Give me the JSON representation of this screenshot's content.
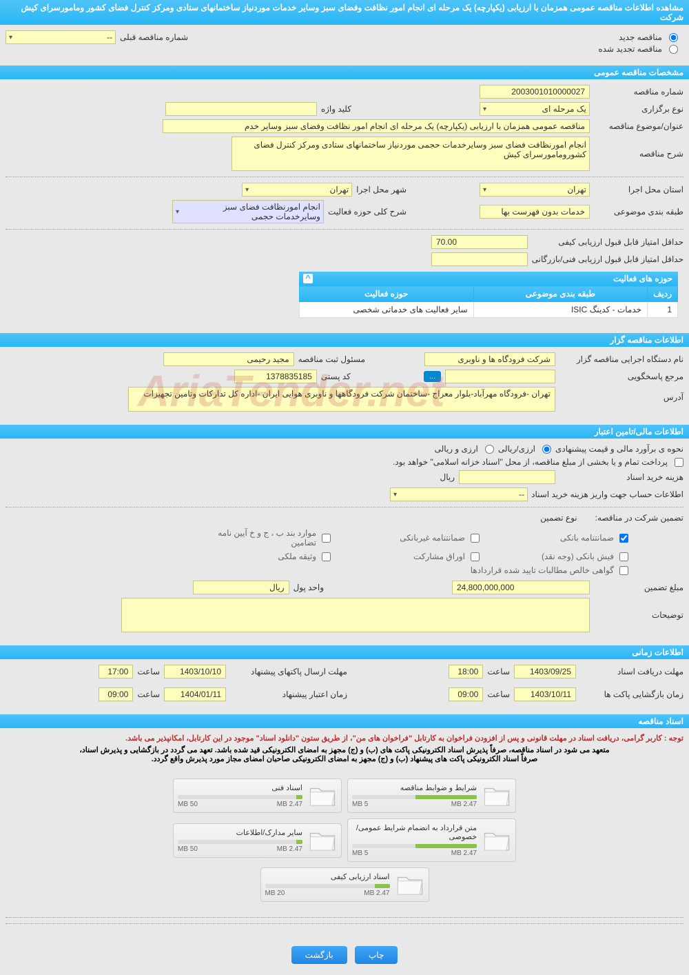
{
  "header": {
    "title": "مشاهده اطلاعات مناقصه عمومی همزمان با ارزیابی (یکپارچه) یک مرحله ای انجام امور نظافت وفضای سبز وسایر خدمات موردنیاز ساختمانهای ستادی ومرکز کنترل فضای کشور ومامورسرای کیش شرکت"
  },
  "radios": {
    "new_tender": "مناقصه جدید",
    "renewed_tender": "مناقصه تجدید شده",
    "prev_tender_label": "شماره مناقصه قبلی",
    "prev_tender_value": "--"
  },
  "general": {
    "section_title": "مشخصات مناقصه عمومی",
    "tender_no_label": "شماره مناقصه",
    "tender_no": "2003001010000027",
    "type_label": "نوع برگزاری",
    "type_value": "یک مرحله ای",
    "keyword_label": "کلید واژه",
    "keyword_value": "",
    "subject_label": "عنوان/موضوع مناقصه",
    "subject_value": "مناقصه عمومی همزمان با ارزیابی (یکپارچه) یک مرحله ای  انجام امور نظافت وفضای سبز وسایر خدم",
    "desc_label": "شرح مناقصه",
    "desc_value": "انجام امورنظافت فضای سبز وسایرخدمات حجمی موردنیاز ساختمانهای ستادی ومرکز کنترل فضای کشورومامورسرای کیش",
    "province_label": "استان محل اجرا",
    "province_value": "تهران",
    "city_label": "شهر محل اجرا",
    "city_value": "تهران",
    "category_label": "طبقه بندی موضوعی",
    "category_value": "خدمات بدون فهرست بها",
    "activity_desc_label": "شرح کلی حوزه فعالیت",
    "activity_desc_value": "انجام امورنظافت فضای سبز وسایرخدمات حجمی",
    "min_quality_label": "حداقل امتیاز قابل قبول ارزیابی کیفی",
    "min_quality_value": "70.00",
    "min_tech_label": "حداقل امتیاز قابل قبول ارزیابی فنی/بازرگانی",
    "min_tech_value": ""
  },
  "activity_table": {
    "title": "حوزه های فعالیت",
    "col_row": "ردیف",
    "col_category": "طبقه بندی موضوعی",
    "col_activity": "حوزه فعالیت",
    "rows": [
      {
        "n": "1",
        "cat": "خدمات - کدینگ ISIC",
        "act": "سایر فعالیت های خدماتی شخصی"
      }
    ]
  },
  "organizer": {
    "section_title": "اطلاعات مناقصه گزار",
    "org_label": "نام دستگاه اجرایی مناقصه گزار",
    "org_value": "شرکت فرودگاه ها و ناوبری",
    "registrar_label": "مسئول ثبت مناقصه",
    "registrar_value": "مجید رحیمی",
    "authority_label": "مرجع پاسخگویی",
    "browse": "...",
    "postcode_label": "کد پستی",
    "postcode_value": "1378835185",
    "address_label": "آدرس",
    "address_value": "تهران -فرودگاه مهرآباد-بلوار معراج -ساختمان شرکت فرودگاهها و ناوبری هوایی ایران -اداره کل تدارکات وتامین تجهیزات"
  },
  "financial": {
    "section_title": "اطلاعات مالی/تامین اعتبار",
    "estimate_label": "نحوه ی برآورد مالی و قیمت پیشنهادی",
    "currency_opt1": "ارزی/ریالی",
    "currency_opt2": "ارزی و ریالی",
    "payment_note": "پرداخت تمام و یا بخشی از مبلغ مناقصه، از محل \"اسناد خزانه اسلامی\" خواهد بود.",
    "doc_cost_label": "هزینه خرید اسناد",
    "doc_cost_unit": "ریال",
    "account_label": "اطلاعات حساب جهت واریز هزینه خرید اسناد",
    "account_value": "--",
    "guarantee_label": "تضمین شرکت در مناقصه:",
    "guarantee_type_label": "نوع تضمین",
    "cb_bank": "ضمانتنامه بانکی",
    "cb_nonbank": "ضمانتنامه غیربانکی",
    "cb_bond": "موارد بند ب ، ج و خ آیین نامه تضامین",
    "cb_cash": "فیش بانکی (وجه نقد)",
    "cb_stock": "اوراق مشارکت",
    "cb_property": "وثیقه ملکی",
    "cb_receivable": "گواهی خالص مطالبات تایید شده قراردادها",
    "guarantee_amount_label": "مبلغ تضمین",
    "guarantee_amount": "24,800,000,000",
    "unit_label": "واحد پول",
    "unit_value": "ریال",
    "notes_label": "توضیحات"
  },
  "timing": {
    "section_title": "اطلاعات زمانی",
    "receive_label": "مهلت دریافت اسناد",
    "receive_date": "1403/09/25",
    "receive_time": "18:00",
    "send_label": "مهلت ارسال پاکتهای پیشنهاد",
    "send_date": "1403/10/10",
    "send_time": "17:00",
    "open_label": "زمان بازگشایی پاکت ها",
    "open_date": "1403/10/11",
    "open_time": "09:00",
    "validity_label": "زمان اعتبار پیشنهاد",
    "validity_date": "1404/01/11",
    "validity_time": "09:00",
    "time_label": "ساعت"
  },
  "documents": {
    "section_title": "اسناد مناقصه",
    "note_red": "توجه : کاربر گرامی، دریافت اسناد در مهلت قانونی و پس از افزودن فراخوان به کارتابل \"فراخوان های من\"، از طریق ستون \"دانلود اسناد\" موجود در این کارتابل، امکانپذیر می باشد.",
    "note_black1": "متعهد می شود در اسناد مناقصه، صرفاً پذیرش اسناد الکترونیکی پاکت های (ب) و (ج) مجهز به امضای الکترونیکی قید شده باشد. تعهد می گردد در بازگشایی و پذیرش اسناد،",
    "note_black2": "صرفاً اسناد الکترونیکی پاکت های پیشنهاد (ب) و (ج) مجهز به امضای الکترونیکی صاحبان امضای مجاز مورد پذیرش واقع گردد.",
    "cards": [
      {
        "title": "شرایط و ضوابط مناقصه",
        "used": "2.47 MB",
        "total": "5 MB",
        "pct": 49
      },
      {
        "title": "اسناد فنی",
        "used": "2.47 MB",
        "total": "50 MB",
        "pct": 5
      },
      {
        "title": "متن قرارداد به انضمام شرایط عمومی/خصوصی",
        "used": "2.47 MB",
        "total": "5 MB",
        "pct": 49
      },
      {
        "title": "سایر مدارک/اطلاعات",
        "used": "2.47 MB",
        "total": "50 MB",
        "pct": 5
      },
      {
        "title": "اسناد ارزیابی کیفی",
        "used": "2.47 MB",
        "total": "20 MB",
        "pct": 12
      }
    ]
  },
  "footer": {
    "print": "چاپ",
    "back": "بازگشت"
  },
  "watermark": "AriaTender.net"
}
